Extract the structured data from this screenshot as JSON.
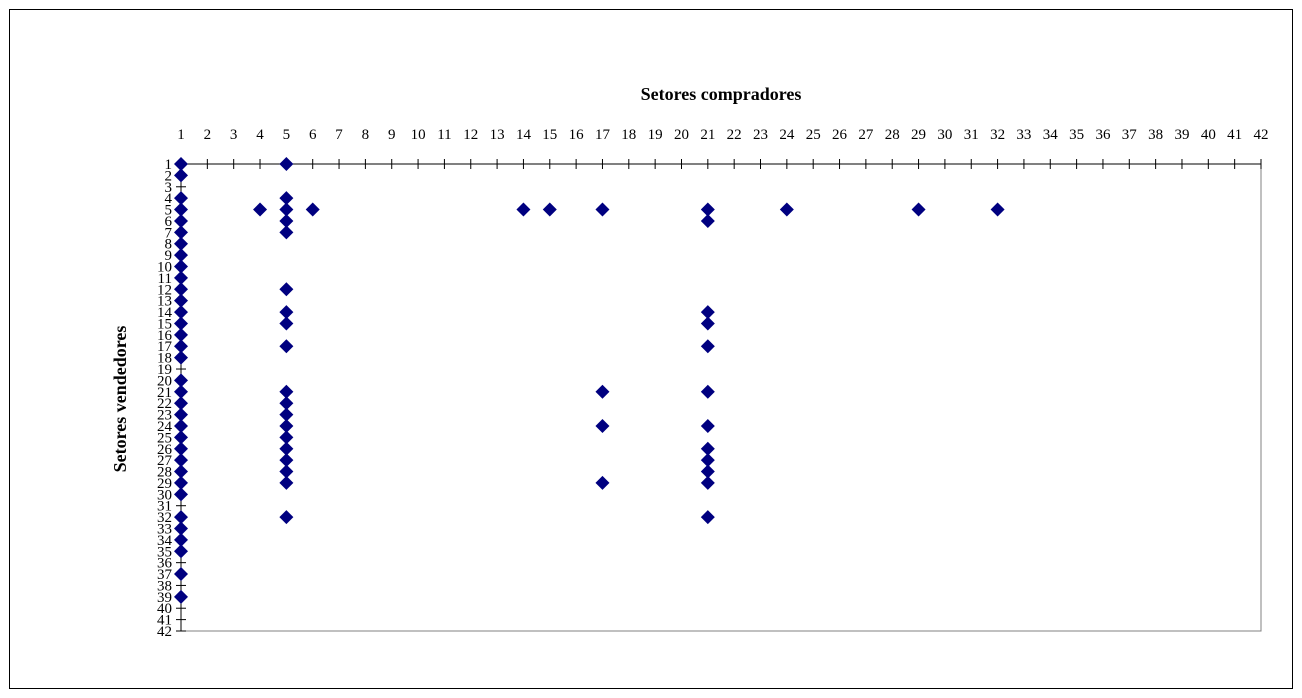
{
  "chart_data": {
    "type": "scatter",
    "title": "",
    "xlabel": "Setores compradores",
    "ylabel": "Setores vendedores",
    "xlim": [
      1,
      42
    ],
    "ylim": [
      1,
      42
    ],
    "y_inverted": true,
    "x_axis_position": "top",
    "grid": false,
    "legend": "none",
    "marker": "diamond",
    "marker_color": "#000080",
    "x_ticks": [
      "1",
      "2",
      "3",
      "4",
      "5",
      "6",
      "7",
      "8",
      "9",
      "10",
      "11",
      "12",
      "13",
      "14",
      "15",
      "16",
      "17",
      "18",
      "19",
      "20",
      "21",
      "22",
      "23",
      "24",
      "25",
      "26",
      "27",
      "28",
      "29",
      "30",
      "31",
      "32",
      "33",
      "34",
      "35",
      "36",
      "37",
      "38",
      "39",
      "40",
      "41",
      "42"
    ],
    "y_ticks": [
      "1",
      "2",
      "3",
      "4",
      "5",
      "6",
      "7",
      "8",
      "9",
      "10",
      "11",
      "12",
      "13",
      "14",
      "15",
      "16",
      "17",
      "18",
      "19",
      "20",
      "21",
      "22",
      "23",
      "24",
      "25",
      "26",
      "27",
      "28",
      "29",
      "30",
      "31",
      "32",
      "33",
      "34",
      "35",
      "36",
      "37",
      "38",
      "39",
      "40",
      "41",
      "42"
    ],
    "series": [
      {
        "points": [
          [
            1,
            1
          ],
          [
            1,
            2
          ],
          [
            1,
            4
          ],
          [
            1,
            5
          ],
          [
            1,
            6
          ],
          [
            1,
            7
          ],
          [
            1,
            8
          ],
          [
            1,
            9
          ],
          [
            1,
            10
          ],
          [
            1,
            11
          ],
          [
            1,
            12
          ],
          [
            1,
            13
          ],
          [
            1,
            14
          ],
          [
            1,
            15
          ],
          [
            1,
            16
          ],
          [
            1,
            17
          ],
          [
            1,
            18
          ],
          [
            1,
            20
          ],
          [
            1,
            21
          ],
          [
            1,
            22
          ],
          [
            1,
            23
          ],
          [
            1,
            24
          ],
          [
            1,
            25
          ],
          [
            1,
            26
          ],
          [
            1,
            27
          ],
          [
            1,
            28
          ],
          [
            1,
            29
          ],
          [
            1,
            30
          ],
          [
            1,
            32
          ],
          [
            1,
            33
          ],
          [
            1,
            34
          ],
          [
            1,
            35
          ],
          [
            1,
            37
          ],
          [
            1,
            39
          ],
          [
            4,
            5
          ],
          [
            5,
            1
          ],
          [
            5,
            4
          ],
          [
            5,
            5
          ],
          [
            5,
            6
          ],
          [
            5,
            7
          ],
          [
            5,
            12
          ],
          [
            5,
            14
          ],
          [
            5,
            15
          ],
          [
            5,
            17
          ],
          [
            5,
            21
          ],
          [
            5,
            22
          ],
          [
            5,
            23
          ],
          [
            5,
            24
          ],
          [
            5,
            25
          ],
          [
            5,
            26
          ],
          [
            5,
            27
          ],
          [
            5,
            28
          ],
          [
            5,
            29
          ],
          [
            5,
            32
          ],
          [
            6,
            5
          ],
          [
            14,
            5
          ],
          [
            15,
            5
          ],
          [
            17,
            5
          ],
          [
            17,
            21
          ],
          [
            17,
            24
          ],
          [
            17,
            29
          ],
          [
            21,
            5
          ],
          [
            21,
            6
          ],
          [
            21,
            14
          ],
          [
            21,
            15
          ],
          [
            21,
            17
          ],
          [
            21,
            21
          ],
          [
            21,
            24
          ],
          [
            21,
            26
          ],
          [
            21,
            27
          ],
          [
            21,
            28
          ],
          [
            21,
            29
          ],
          [
            21,
            32
          ],
          [
            24,
            5
          ],
          [
            29,
            5
          ],
          [
            32,
            5
          ]
        ]
      }
    ]
  }
}
